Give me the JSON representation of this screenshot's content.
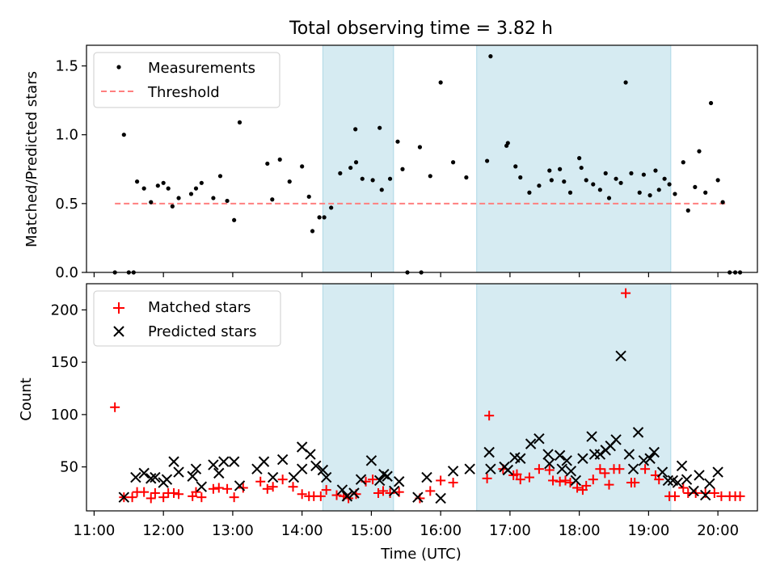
{
  "chart_data": {
    "type": "scatter",
    "title": "Total observing time = 3.82 h",
    "xlabel": "Time (UTC)",
    "x_unit": "hours UTC",
    "x_ticks": [
      {
        "value": 11,
        "label": "11:00"
      },
      {
        "value": 12,
        "label": "12:00"
      },
      {
        "value": 13,
        "label": "13:00"
      },
      {
        "value": 14,
        "label": "14:00"
      },
      {
        "value": 15,
        "label": "15:00"
      },
      {
        "value": 16,
        "label": "16:00"
      },
      {
        "value": 17,
        "label": "17:00"
      },
      {
        "value": 18,
        "label": "18:00"
      },
      {
        "value": 19,
        "label": "19:00"
      },
      {
        "value": 20,
        "label": "20:00"
      }
    ],
    "xlim": [
      10.89,
      20.57
    ],
    "highlight_spans": [
      {
        "start": 14.3,
        "end": 15.32,
        "color": "#add8e6"
      },
      {
        "start": 16.52,
        "end": 19.32,
        "color": "#add8e6"
      }
    ],
    "top_panel": {
      "ylabel": "Matched/Predicted stars",
      "ylim": [
        0,
        1.65
      ],
      "y_ticks": [
        {
          "value": 0,
          "label": "0.0"
        },
        {
          "value": 0.5,
          "label": "0.5"
        },
        {
          "value": 1.0,
          "label": "1.0"
        },
        {
          "value": 1.5,
          "label": "1.5"
        }
      ],
      "legend": {
        "position": "upper-left",
        "measurements_label": "Measurements",
        "threshold_label": "Threshold"
      },
      "threshold": {
        "value": 0.5,
        "x_start": 11.3,
        "x_end": 20.15,
        "color": "#ff7f7f"
      },
      "measurements": [
        [
          11.3,
          0.0
        ],
        [
          11.43,
          1.0
        ],
        [
          11.5,
          0.0
        ],
        [
          11.57,
          0.0
        ],
        [
          11.62,
          0.66
        ],
        [
          11.72,
          0.61
        ],
        [
          11.82,
          0.51
        ],
        [
          11.92,
          0.63
        ],
        [
          12.0,
          0.65
        ],
        [
          12.07,
          0.61
        ],
        [
          12.13,
          0.48
        ],
        [
          12.22,
          0.54
        ],
        [
          12.4,
          0.57
        ],
        [
          12.47,
          0.61
        ],
        [
          12.55,
          0.65
        ],
        [
          12.72,
          0.54
        ],
        [
          12.82,
          0.7
        ],
        [
          12.92,
          0.52
        ],
        [
          13.02,
          0.38
        ],
        [
          13.1,
          1.09
        ],
        [
          13.5,
          0.79
        ],
        [
          13.57,
          0.53
        ],
        [
          13.68,
          0.82
        ],
        [
          13.82,
          0.66
        ],
        [
          14.0,
          0.77
        ],
        [
          14.1,
          0.55
        ],
        [
          14.15,
          0.3
        ],
        [
          14.25,
          0.4
        ],
        [
          14.32,
          0.4
        ],
        [
          14.42,
          0.47
        ],
        [
          14.55,
          0.72
        ],
        [
          14.7,
          0.76
        ],
        [
          14.77,
          1.04
        ],
        [
          14.78,
          0.8
        ],
        [
          14.87,
          0.68
        ],
        [
          15.02,
          0.67
        ],
        [
          15.12,
          1.05
        ],
        [
          15.15,
          0.6
        ],
        [
          15.27,
          0.68
        ],
        [
          15.38,
          0.95
        ],
        [
          15.45,
          0.75
        ],
        [
          15.52,
          0.0
        ],
        [
          15.7,
          0.91
        ],
        [
          15.72,
          0.0
        ],
        [
          15.85,
          0.7
        ],
        [
          16.0,
          1.38
        ],
        [
          16.18,
          0.8
        ],
        [
          16.37,
          0.69
        ],
        [
          16.67,
          0.81
        ],
        [
          16.72,
          1.57
        ],
        [
          16.95,
          0.92
        ],
        [
          16.97,
          0.94
        ],
        [
          17.08,
          0.77
        ],
        [
          17.15,
          0.69
        ],
        [
          17.28,
          0.58
        ],
        [
          17.42,
          0.63
        ],
        [
          17.57,
          0.74
        ],
        [
          17.6,
          0.67
        ],
        [
          17.72,
          0.75
        ],
        [
          17.78,
          0.66
        ],
        [
          17.87,
          0.58
        ],
        [
          18.0,
          0.83
        ],
        [
          18.03,
          0.76
        ],
        [
          18.1,
          0.67
        ],
        [
          18.2,
          0.64
        ],
        [
          18.3,
          0.6
        ],
        [
          18.38,
          0.72
        ],
        [
          18.43,
          0.54
        ],
        [
          18.53,
          0.68
        ],
        [
          18.6,
          0.65
        ],
        [
          18.67,
          1.38
        ],
        [
          18.75,
          0.72
        ],
        [
          18.87,
          0.58
        ],
        [
          18.93,
          0.71
        ],
        [
          19.02,
          0.56
        ],
        [
          19.1,
          0.74
        ],
        [
          19.15,
          0.6
        ],
        [
          19.23,
          0.68
        ],
        [
          19.3,
          0.64
        ],
        [
          19.38,
          0.57
        ],
        [
          19.5,
          0.8
        ],
        [
          19.57,
          0.45
        ],
        [
          19.67,
          0.62
        ],
        [
          19.73,
          0.88
        ],
        [
          19.82,
          0.58
        ],
        [
          19.9,
          1.23
        ],
        [
          20.0,
          0.67
        ],
        [
          20.07,
          0.51
        ],
        [
          20.17,
          0.0
        ],
        [
          20.25,
          0.0
        ],
        [
          20.32,
          0.0
        ]
      ]
    },
    "bottom_panel": {
      "ylabel": "Count",
      "ylim": [
        8,
        225
      ],
      "y_ticks": [
        {
          "value": 50,
          "label": "50"
        },
        {
          "value": 100,
          "label": "100"
        },
        {
          "value": 150,
          "label": "150"
        },
        {
          "value": 200,
          "label": "200"
        }
      ],
      "legend": {
        "position": "upper-left",
        "matched_label": "Matched stars",
        "predicted_label": "Predicted stars"
      },
      "series": [
        {
          "name": "Matched stars",
          "marker": "plus",
          "color": "#ff0000",
          "points": [
            [
              11.3,
              107
            ],
            [
              11.43,
              21
            ],
            [
              11.55,
              21
            ],
            [
              11.62,
              26
            ],
            [
              11.72,
              26
            ],
            [
              11.82,
              20
            ],
            [
              11.88,
              25
            ],
            [
              12.0,
              21
            ],
            [
              12.07,
              25
            ],
            [
              12.15,
              25
            ],
            [
              12.22,
              24
            ],
            [
              12.42,
              22
            ],
            [
              12.47,
              26
            ],
            [
              12.55,
              21
            ],
            [
              12.72,
              29
            ],
            [
              12.8,
              30
            ],
            [
              12.92,
              29
            ],
            [
              13.02,
              21
            ],
            [
              13.15,
              30
            ],
            [
              13.4,
              36
            ],
            [
              13.5,
              29
            ],
            [
              13.58,
              31
            ],
            [
              13.72,
              38
            ],
            [
              13.87,
              31
            ],
            [
              14.0,
              24
            ],
            [
              14.1,
              22
            ],
            [
              14.17,
              22
            ],
            [
              14.27,
              22
            ],
            [
              14.35,
              28
            ],
            [
              14.5,
              23
            ],
            [
              14.6,
              22
            ],
            [
              14.67,
              20
            ],
            [
              14.78,
              24
            ],
            [
              14.92,
              36
            ],
            [
              15.02,
              38
            ],
            [
              15.1,
              25
            ],
            [
              15.17,
              27
            ],
            [
              15.27,
              25
            ],
            [
              15.4,
              26
            ],
            [
              15.7,
              20
            ],
            [
              15.85,
              27
            ],
            [
              16.0,
              37
            ],
            [
              16.18,
              35
            ],
            [
              16.67,
              39
            ],
            [
              16.7,
              99
            ],
            [
              16.9,
              48
            ],
            [
              17.05,
              42
            ],
            [
              17.1,
              43
            ],
            [
              17.15,
              38
            ],
            [
              17.28,
              40
            ],
            [
              17.42,
              48
            ],
            [
              17.57,
              47
            ],
            [
              17.62,
              37
            ],
            [
              17.72,
              36
            ],
            [
              17.8,
              37
            ],
            [
              17.87,
              35
            ],
            [
              17.97,
              30
            ],
            [
              18.05,
              28
            ],
            [
              18.1,
              32
            ],
            [
              18.2,
              38
            ],
            [
              18.3,
              48
            ],
            [
              18.37,
              44
            ],
            [
              18.43,
              33
            ],
            [
              18.5,
              48
            ],
            [
              18.58,
              48
            ],
            [
              18.67,
              216
            ],
            [
              18.75,
              35
            ],
            [
              18.8,
              35
            ],
            [
              18.95,
              48
            ],
            [
              19.1,
              42
            ],
            [
              19.15,
              38
            ],
            [
              19.3,
              22
            ],
            [
              19.38,
              22
            ],
            [
              19.5,
              30
            ],
            [
              19.57,
              25
            ],
            [
              19.68,
              25
            ],
            [
              19.82,
              25
            ],
            [
              19.95,
              25
            ],
            [
              20.05,
              22
            ],
            [
              20.17,
              22
            ],
            [
              20.25,
              22
            ],
            [
              20.32,
              22
            ]
          ]
        },
        {
          "name": "Predicted stars",
          "marker": "x",
          "color": "#000000",
          "points": [
            [
              11.43,
              21
            ],
            [
              11.6,
              40
            ],
            [
              11.72,
              44
            ],
            [
              11.82,
              39
            ],
            [
              11.88,
              40
            ],
            [
              12.0,
              35
            ],
            [
              12.05,
              38
            ],
            [
              12.15,
              55
            ],
            [
              12.22,
              45
            ],
            [
              12.42,
              41
            ],
            [
              12.47,
              48
            ],
            [
              12.55,
              31
            ],
            [
              12.72,
              52
            ],
            [
              12.8,
              44
            ],
            [
              12.87,
              55
            ],
            [
              13.02,
              55
            ],
            [
              13.1,
              32
            ],
            [
              13.35,
              48
            ],
            [
              13.45,
              55
            ],
            [
              13.58,
              40
            ],
            [
              13.72,
              57
            ],
            [
              13.88,
              40
            ],
            [
              14.0,
              48
            ],
            [
              14.0,
              69
            ],
            [
              14.12,
              62
            ],
            [
              14.2,
              51
            ],
            [
              14.3,
              47
            ],
            [
              14.35,
              40
            ],
            [
              14.58,
              28
            ],
            [
              14.65,
              22
            ],
            [
              14.75,
              25
            ],
            [
              14.85,
              38
            ],
            [
              15.0,
              56
            ],
            [
              15.12,
              37
            ],
            [
              15.18,
              43
            ],
            [
              15.23,
              41
            ],
            [
              15.33,
              27
            ],
            [
              15.4,
              36
            ],
            [
              15.67,
              21
            ],
            [
              15.8,
              40
            ],
            [
              16.0,
              20
            ],
            [
              16.18,
              46
            ],
            [
              16.42,
              48
            ],
            [
              16.7,
              64
            ],
            [
              16.72,
              48
            ],
            [
              16.92,
              50
            ],
            [
              16.97,
              47
            ],
            [
              17.07,
              59
            ],
            [
              17.15,
              58
            ],
            [
              17.3,
              72
            ],
            [
              17.42,
              77
            ],
            [
              17.55,
              62
            ],
            [
              17.57,
              53
            ],
            [
              17.72,
              61
            ],
            [
              17.75,
              48
            ],
            [
              17.82,
              56
            ],
            [
              17.88,
              46
            ],
            [
              17.95,
              37
            ],
            [
              18.05,
              58
            ],
            [
              18.18,
              79
            ],
            [
              18.22,
              62
            ],
            [
              18.3,
              62
            ],
            [
              18.38,
              66
            ],
            [
              18.45,
              70
            ],
            [
              18.53,
              76
            ],
            [
              18.6,
              156
            ],
            [
              18.72,
              62
            ],
            [
              18.78,
              48
            ],
            [
              18.85,
              83
            ],
            [
              18.93,
              56
            ],
            [
              19.02,
              58
            ],
            [
              19.08,
              64
            ],
            [
              19.2,
              45
            ],
            [
              19.28,
              37
            ],
            [
              19.35,
              37
            ],
            [
              19.42,
              35
            ],
            [
              19.48,
              51
            ],
            [
              19.55,
              38
            ],
            [
              19.65,
              27
            ],
            [
              19.73,
              42
            ],
            [
              19.82,
              23
            ],
            [
              19.88,
              34
            ],
            [
              20.0,
              45
            ]
          ]
        }
      ]
    }
  }
}
